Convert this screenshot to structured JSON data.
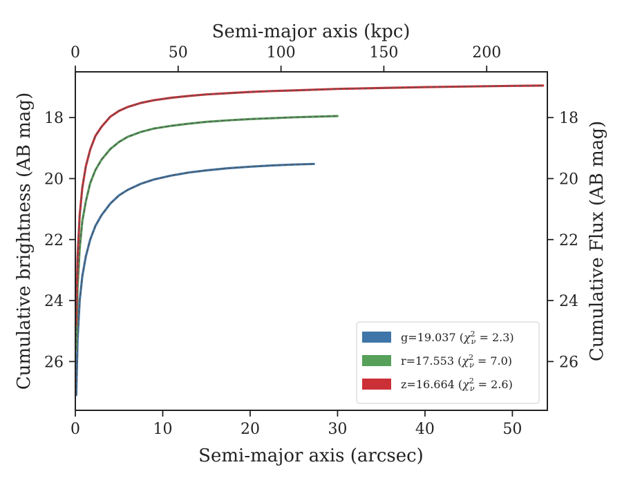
{
  "chart_data": {
    "type": "line",
    "xlabel": "Semi-major axis (arcsec)",
    "xlabel_top": "Semi-major axis (kpc)",
    "ylabel": "Cumulative brightness (AB mag)",
    "ylabel_right": "Cumulative Flux (AB mag)",
    "xlim": [
      0,
      54
    ],
    "xlim_top": [
      0,
      229.5
    ],
    "ylim": [
      27.6,
      16.5
    ],
    "y_inverted": true,
    "xticks": [
      0,
      10,
      20,
      30,
      40,
      50
    ],
    "xticks_top": [
      0,
      50,
      100,
      150,
      200
    ],
    "yticks": [
      18,
      20,
      22,
      24,
      26
    ],
    "grid": false,
    "legend_position": "lower-right",
    "series": [
      {
        "name": "g=19.037 (χ²ν = 2.3)",
        "label_main": "g=19.037 (",
        "label_var": "χ",
        "label_sup": "2",
        "label_sub": "ν",
        "label_tail": " = 2.3)",
        "color": "#3f75a8",
        "x": [
          0.1,
          0.25,
          0.5,
          0.8,
          1.2,
          1.7,
          2.3,
          3.0,
          4.0,
          5.0,
          6.0,
          7.5,
          9.0,
          11.0,
          13.0,
          15.0,
          17.5,
          20.0,
          22.5,
          25.0,
          27.3
        ],
        "y": [
          27.1,
          25.3,
          24.0,
          23.2,
          22.55,
          22.0,
          21.55,
          21.2,
          20.82,
          20.55,
          20.37,
          20.17,
          20.03,
          19.9,
          19.8,
          19.73,
          19.66,
          19.61,
          19.57,
          19.54,
          19.52
        ]
      },
      {
        "name": "r=17.553 (χ²ν = 7.0)",
        "label_main": "r=17.553 (",
        "label_var": "χ",
        "label_sup": "2",
        "label_sub": "ν",
        "label_tail": " = 7.0)",
        "color": "#56a05a",
        "x": [
          0.1,
          0.25,
          0.5,
          0.8,
          1.2,
          1.7,
          2.3,
          3.0,
          4.0,
          5.0,
          6.0,
          7.5,
          9.0,
          11.0,
          13.0,
          15.0,
          17.5,
          20.0,
          22.5,
          25.0,
          27.5,
          30.0
        ],
        "y": [
          25.6,
          23.6,
          22.3,
          21.4,
          20.75,
          20.15,
          19.72,
          19.38,
          19.03,
          18.8,
          18.63,
          18.47,
          18.36,
          18.27,
          18.2,
          18.14,
          18.09,
          18.05,
          18.02,
          17.99,
          17.97,
          17.95
        ]
      },
      {
        "name": "z=16.664 (χ²ν = 2.6)",
        "label_main": "z=16.664 (",
        "label_var": "χ",
        "label_sup": "2",
        "label_sub": "ν",
        "label_tail": " = 2.6)",
        "color": "#cc3037",
        "x": [
          0.1,
          0.25,
          0.5,
          0.8,
          1.2,
          1.7,
          2.3,
          3.0,
          4.0,
          5.0,
          6.0,
          7.5,
          9.0,
          11.0,
          13.0,
          15.0,
          17.5,
          20.0,
          22.5,
          25.0,
          30.0,
          35.0,
          40.0,
          45.0,
          50.0,
          53.5
        ],
        "y": [
          24.8,
          22.6,
          21.2,
          20.3,
          19.6,
          19.05,
          18.6,
          18.3,
          17.97,
          17.78,
          17.65,
          17.52,
          17.43,
          17.35,
          17.29,
          17.24,
          17.2,
          17.16,
          17.13,
          17.11,
          17.06,
          17.03,
          17.0,
          16.98,
          16.96,
          16.95
        ]
      }
    ]
  }
}
